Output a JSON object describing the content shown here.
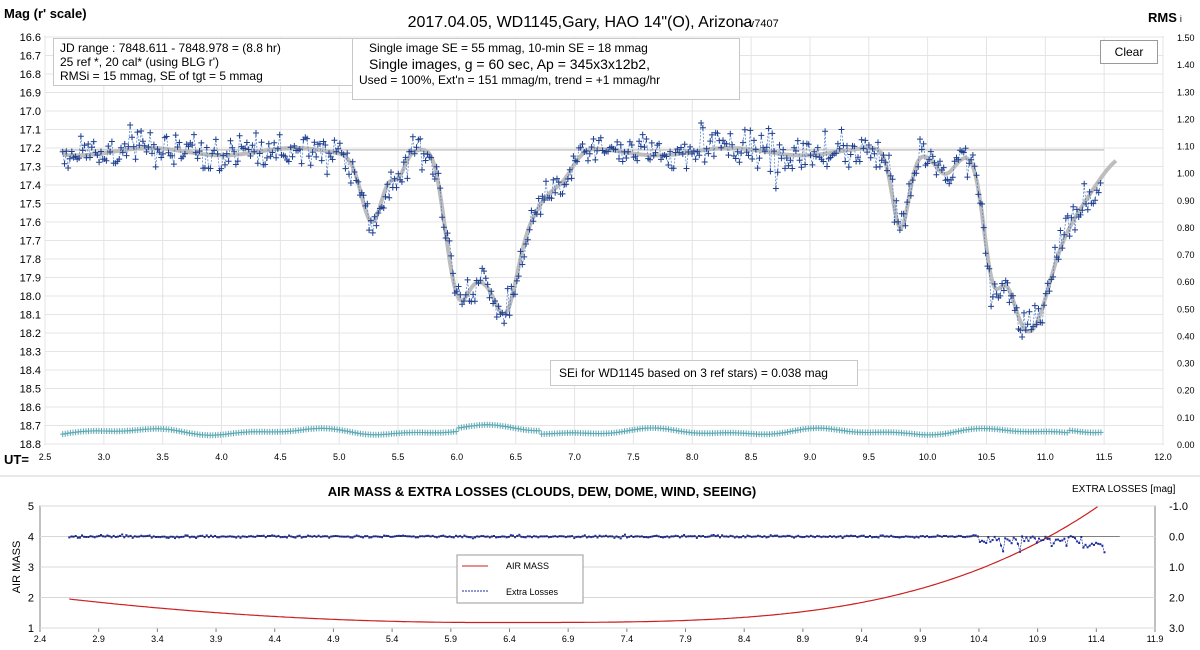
{
  "title": "2017.04.05,  WD1145,Gary, HAO  14\"(O), Arizona",
  "version": "- v7407",
  "left_axis_label": "Mag (r' scale)",
  "right_axis_label": "RMS",
  "right_axis_label_suffix": "i",
  "ut_label": "UT=",
  "info_box_1": {
    "line1": "JD range  : 7848.611 - 7848.978 = (8.8 hr)",
    "line2": "25 ref *, 20 cal* (using BLG r')",
    "line3": "RMSi = 15 mmag, SE of tgt = 5 mmag"
  },
  "info_box_2": {
    "line1": "Single image SE = 55 mmag, 10-min SE = 18 mmag",
    "line2": "Single images, g = 60 sec, Ap = 345x3x12b2,",
    "line3": "Used = 100%, Ext'n = 151 mmag/m, trend = +1 mmag/hr"
  },
  "clear_button": "Clear",
  "se_note": "SEi for WD1145 based on 3 ref stars) = 0.038 mag",
  "bottom_title": "AIR MASS & EXTRA LOSSES (CLOUDS, DEW, DOME, WIND, SEEING)",
  "bottom_left_label": "AIR MASS",
  "bottom_right_label": "EXTRA LOSSES [mag]",
  "legend": {
    "airmass": "AIR MASS",
    "extra": "Extra Losses"
  },
  "colors": {
    "data": "#1f3f8f",
    "model": "#bdbdbd",
    "rms": "#5aa9b5",
    "airmass": "#cc1f1f",
    "extra": "#1e2f9e"
  },
  "chart_data": [
    {
      "type": "scatter",
      "xlim": [
        2.5,
        12.0
      ],
      "ylim": [
        16.6,
        18.8
      ],
      "y_inverted": true,
      "x_ticks": [
        "2.5",
        "3.0",
        "3.5",
        "4.0",
        "4.5",
        "5.0",
        "5.5",
        "6.0",
        "6.5",
        "7.0",
        "7.5",
        "8.0",
        "8.5",
        "9.0",
        "9.5",
        "10.0",
        "10.5",
        "11.0",
        "11.5",
        "12.0"
      ],
      "y_ticks": [
        "16.6",
        "16.7",
        "16.8",
        "16.9",
        "17.0",
        "17.1",
        "17.2",
        "17.3",
        "17.4",
        "17.5",
        "17.6",
        "17.7",
        "17.8",
        "17.9",
        "18.0",
        "18.1",
        "18.2",
        "18.3",
        "18.4",
        "18.5",
        "18.6",
        "18.7",
        "18.8"
      ],
      "right_ticks": [
        "0.00",
        "0.10",
        "0.20",
        "0.30",
        "0.40",
        "0.50",
        "0.60",
        "0.70",
        "0.80",
        "0.90",
        "1.00",
        "1.10",
        "1.20",
        "1.30",
        "1.40",
        "1.50"
      ],
      "right_ylim": [
        0.0,
        1.5
      ],
      "reference_level": 17.21,
      "x_range": [
        2.65,
        11.48
      ],
      "baseline_mag": 17.22,
      "dips": [
        {
          "x": 5.28,
          "depth": 0.36,
          "width": 0.09
        },
        {
          "x": 5.5,
          "depth": 0.12,
          "width": 0.06
        },
        {
          "x": 5.9,
          "depth": 0.08,
          "width": 0.06
        },
        {
          "x": 6.0,
          "depth": 0.55,
          "width": 0.09
        },
        {
          "x": 6.2,
          "depth": 0.6,
          "width": 0.14
        },
        {
          "x": 6.42,
          "depth": 0.55,
          "width": 0.1
        },
        {
          "x": 6.62,
          "depth": 0.3,
          "width": 0.15
        },
        {
          "x": 6.9,
          "depth": 0.12,
          "width": 0.1
        },
        {
          "x": 9.77,
          "depth": 0.42,
          "width": 0.07
        },
        {
          "x": 10.15,
          "depth": 0.1,
          "width": 0.08
        },
        {
          "x": 10.55,
          "depth": 0.55,
          "width": 0.08
        },
        {
          "x": 10.75,
          "depth": 0.62,
          "width": 0.12
        },
        {
          "x": 10.92,
          "depth": 0.55,
          "width": 0.12
        },
        {
          "x": 11.1,
          "depth": 0.35,
          "width": 0.15
        },
        {
          "x": 11.35,
          "depth": 0.15,
          "width": 0.15
        }
      ],
      "model_extends_to": 11.6,
      "rms_level": 0.045
    },
    {
      "type": "line",
      "title": "AIR MASS & EXTRA LOSSES (CLOUDS, DEW, DOME, WIND, SEEING)",
      "xlim": [
        2.4,
        11.9
      ],
      "ylim": [
        1,
        5
      ],
      "x_ticks": [
        "2.4",
        "2.9",
        "3.4",
        "3.9",
        "4.4",
        "4.9",
        "5.4",
        "5.9",
        "6.4",
        "6.9",
        "7.4",
        "7.9",
        "8.4",
        "8.9",
        "9.4",
        "9.9",
        "10.4",
        "10.9",
        "11.4",
        "11.9"
      ],
      "y_ticks": [
        "1",
        "2",
        "3",
        "4",
        "5"
      ],
      "right_ticks": [
        "-1.0",
        "0.0",
        "1.0",
        "2.0",
        "3.0"
      ],
      "right_ylim": [
        3.0,
        -1.0
      ],
      "series": [
        {
          "name": "AIR MASS",
          "x_range": [
            2.65,
            11.42
          ],
          "start": 1.95,
          "min": 1.18,
          "min_at": 6.2,
          "end": 5.0
        },
        {
          "name": "Extra Losses",
          "x_range": [
            2.65,
            11.48
          ],
          "level": 0.0
        }
      ]
    }
  ]
}
